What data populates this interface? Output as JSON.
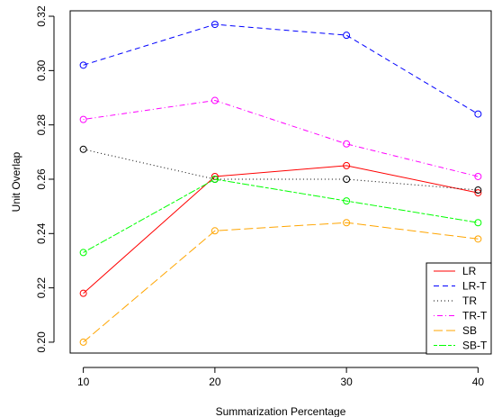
{
  "chart_data": {
    "type": "line",
    "title": "",
    "xlabel": "Summarization Percentage",
    "ylabel": "Unit Overlap",
    "x": [
      10,
      20,
      30,
      40
    ],
    "xticks": [
      "10",
      "20",
      "30",
      "40"
    ],
    "yticks": [
      "0.20",
      "0.22",
      "0.24",
      "0.26",
      "0.28",
      "0.30",
      "0.32"
    ],
    "xlim": [
      9,
      41
    ],
    "ylim": [
      0.196,
      0.322
    ],
    "grid": false,
    "legend_position": "bottom-right",
    "series": [
      {
        "name": "LR",
        "values": [
          0.218,
          0.261,
          0.265,
          0.255
        ],
        "color": "#ff0000",
        "dash": "solid"
      },
      {
        "name": "LR-T",
        "values": [
          0.302,
          0.317,
          0.313,
          0.284
        ],
        "color": "#0000ff",
        "dash": "dashed"
      },
      {
        "name": "TR",
        "values": [
          0.271,
          0.26,
          0.26,
          0.256
        ],
        "color": "#000000",
        "dash": "dotted"
      },
      {
        "name": "TR-T",
        "values": [
          0.282,
          0.289,
          0.273,
          0.261
        ],
        "color": "#ff00ff",
        "dash": "dotdash"
      },
      {
        "name": "SB",
        "values": [
          0.2,
          0.241,
          0.244,
          0.238
        ],
        "color": "#ffa500",
        "dash": "longdash"
      },
      {
        "name": "SB-T",
        "values": [
          0.233,
          0.26,
          0.252,
          0.244
        ],
        "color": "#00ff00",
        "dash": "twodash"
      }
    ]
  }
}
